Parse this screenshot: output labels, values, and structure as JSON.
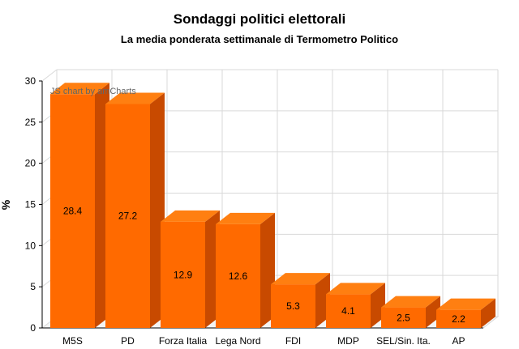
{
  "chart_data": {
    "type": "bar",
    "title": "Sondaggi politici elettorali",
    "subtitle": "La media ponderata settimanale di Termometro Politico",
    "xlabel": "",
    "ylabel": "%",
    "categories": [
      "M5S",
      "PD",
      "Forza Italia",
      "Lega Nord",
      "FDI",
      "MDP",
      "SEL/Sin. Ita.",
      "AP"
    ],
    "values": [
      28.4,
      27.2,
      12.9,
      12.6,
      5.3,
      4.1,
      2.5,
      2.2
    ],
    "ylim": [
      0,
      30
    ],
    "yticks": [
      0,
      5,
      10,
      15,
      20,
      25,
      30
    ],
    "grid": true,
    "style": "3d",
    "colors": {
      "bar_front": "#ff6a00",
      "bar_top": "#ff7f11",
      "bar_side": "#c84a00",
      "grid": "#d9d9d9"
    }
  },
  "credit": "JS chart by amCharts"
}
